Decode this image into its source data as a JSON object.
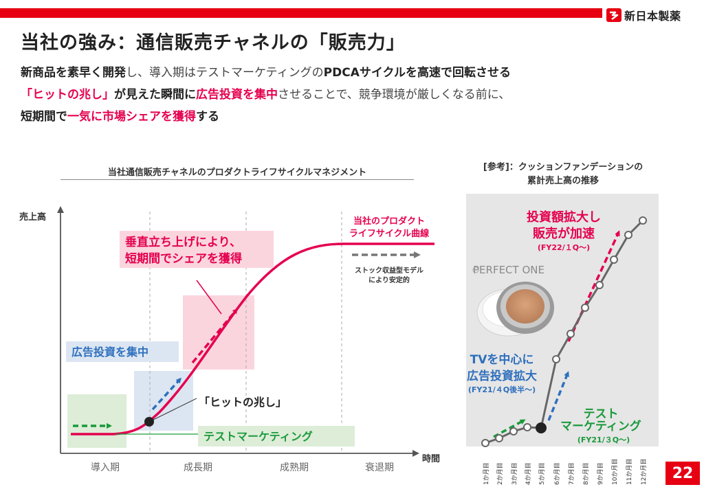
{
  "header": {
    "company_logo_text": "新日本製薬",
    "page_title": "当社の強み：通信販売チャネルの「販売力」",
    "page_number": "22"
  },
  "intro": {
    "line1": [
      {
        "text": "新商品を素早く開発",
        "style": "b"
      },
      {
        "text": "し、導入期はテストマーケティングの",
        "style": "n"
      },
      {
        "text": "PDCAサイクルを高速で回転させる",
        "style": "b"
      }
    ],
    "line2": [
      {
        "text": "「ヒットの兆し」",
        "style": "r"
      },
      {
        "text": "が見えた瞬間に",
        "style": "b"
      },
      {
        "text": "広告投資を集中",
        "style": "r"
      },
      {
        "text": "させることで、競争環境が厳しくなる前に、",
        "style": "n"
      }
    ],
    "line3": [
      {
        "text": "短期間で",
        "style": "b"
      },
      {
        "text": "一気に市場シェアを獲得",
        "style": "r"
      },
      {
        "text": "する",
        "style": "b"
      }
    ]
  },
  "lifecycle_diagram": {
    "title": "当社通信販売チャネルのプロダクトライフサイクルマネジメント",
    "y_axis_label": "売上高",
    "x_axis_label": "時間",
    "phases": [
      "導入期",
      "成長期",
      "成熟期",
      "衰退期"
    ],
    "curve_label_line1": "当社のプロダクト",
    "curve_label_line2": "ライフサイクル曲線",
    "stock_label_line1": "ストック収益型モデル",
    "stock_label_line2": "により安定的",
    "vertical_rise_line1": "垂直立ち上げにより、",
    "vertical_rise_line2": "短期間でシェアを獲得",
    "ad_focus_label": "広告投資を集中",
    "hit_sign_label": "「ヒットの兆し」",
    "test_marketing_label": "テストマーケティング",
    "colors": {
      "curve": "#e5004f",
      "test": "#1a9a3a",
      "ad": "#2e6fbd",
      "pink_box": "#fbd5de",
      "blue_box": "#dce6f2",
      "green_box": "#ddedd8"
    }
  },
  "reference": {
    "title_line1": "[参考]：クッションファンデーションの",
    "title_line2": "累計売上高の推移",
    "brand": "PERFECT ONE",
    "expansion_line1": "投資額拡大し",
    "expansion_line2": "販売が加速",
    "expansion_period": "(FY22/１Q～)",
    "tv_line1": "TVを中心に",
    "tv_line2": "広告投資拡大",
    "tv_period": "(FY21/４Q後半～)",
    "test_line1": "テスト",
    "test_line2": "マーケティング",
    "test_period": "(FY21/３Q～)",
    "months": [
      "1か月目",
      "2か月目",
      "3か月目",
      "4か月目",
      "5か月目",
      "6か月目",
      "7か月目",
      "8か月目",
      "9か月目",
      "10か月目",
      "11か月目",
      "12か月目"
    ]
  }
}
